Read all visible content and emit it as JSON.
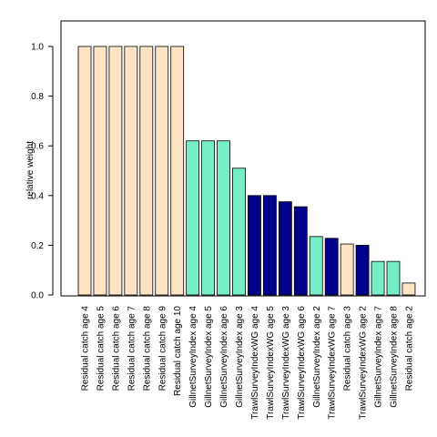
{
  "chart_data": {
    "type": "bar",
    "title": "",
    "xlabel": "",
    "ylabel": "relative weight",
    "ylim": [
      0,
      1.1
    ],
    "yticks": [
      0.0,
      0.2,
      0.4,
      0.6,
      0.8,
      1.0
    ],
    "ytick_labels": [
      "0.0",
      "0.2",
      "0.4",
      "0.6",
      "0.8",
      "1.0"
    ],
    "grid": false,
    "legend": "none",
    "categories": [
      "Residual catch age 4",
      "Residual catch age 5",
      "Residual catch age 6",
      "Residual catch age 7",
      "Residual catch age 8",
      "Residual catch age 9",
      "Residual catch age 10",
      "GillnetSurveyIndex age 4",
      "GillnetSurveyIndex age 5",
      "GillnetSurveyIndex age 6",
      "GillnetSurveyIndex age 3",
      "TrawlSurveyIndexWG age 4",
      "TrawlSurveyIndexWG age 5",
      "TrawlSurveyIndexWG age 3",
      "TrawlSurveyIndexWG age 6",
      "GillnetSurveyIndex age 2",
      "TrawlSurveyIndexWG age 7",
      "Residual catch age 3",
      "TrawlSurveyIndexWG age 2",
      "GillnetSurveyIndex age 7",
      "GillnetSurveyIndex age 8",
      "Residual catch age 2"
    ],
    "values": [
      1.0,
      1.0,
      1.0,
      1.0,
      1.0,
      1.0,
      1.0,
      0.62,
      0.62,
      0.62,
      0.51,
      0.4,
      0.4,
      0.375,
      0.355,
      0.235,
      0.228,
      0.205,
      0.2,
      0.135,
      0.135,
      0.048
    ],
    "bar_colors": [
      "#ffe4c4",
      "#ffe4c4",
      "#ffe4c4",
      "#ffe4c4",
      "#ffe4c4",
      "#ffe4c4",
      "#ffe4c4",
      "#76eec6",
      "#76eec6",
      "#76eec6",
      "#76eec6",
      "#00008b",
      "#00008b",
      "#00008b",
      "#00008b",
      "#76eec6",
      "#00008b",
      "#ffe4c4",
      "#00008b",
      "#76eec6",
      "#76eec6",
      "#ffe4c4"
    ]
  }
}
